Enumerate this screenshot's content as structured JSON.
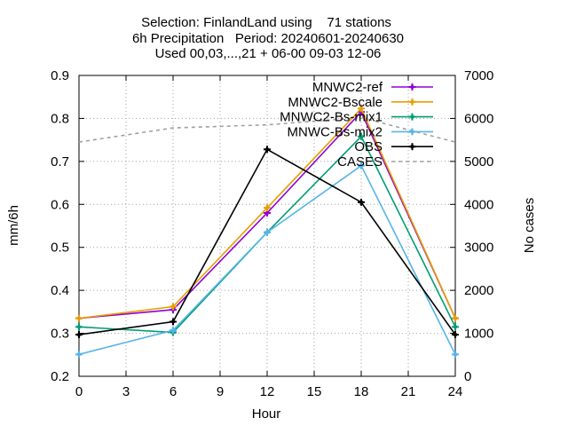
{
  "chart_data": {
    "type": "line",
    "title_lines": [
      "Selection: FinlandLand using    71 stations",
      "6h Precipitation   Period: 20240601-20240630",
      "Used 00,03,...,21 + 06-00 09-03 12-06"
    ],
    "xlabel": "Hour",
    "ylabel": "mm/6h",
    "y2label": "No cases",
    "xlim": [
      0,
      24
    ],
    "ylim": [
      0.2,
      0.9
    ],
    "y2lim": [
      0,
      7000
    ],
    "x_ticks": [
      0,
      3,
      6,
      9,
      12,
      15,
      18,
      21,
      24
    ],
    "y_ticks": [
      0.2,
      0.3,
      0.4,
      0.5,
      0.6,
      0.7,
      0.8,
      0.9
    ],
    "y_tick_labels": [
      "0.2",
      "0.3",
      "0.4",
      "0.5",
      "0.6",
      "0.7",
      "0.8",
      "0.9"
    ],
    "y2_ticks": [
      0,
      1000,
      2000,
      3000,
      4000,
      5000,
      6000,
      7000
    ],
    "grid": true,
    "legend_position": "top-right",
    "x": [
      0,
      6,
      12,
      18,
      24
    ],
    "series": [
      {
        "name": "MNWC2-ref",
        "color": "#9400d3",
        "marker": "plus",
        "axis": "y1",
        "values": [
          0.335,
          0.355,
          0.58,
          0.815,
          0.335
        ]
      },
      {
        "name": "MNWC2-Bscale",
        "color": "#e69f00",
        "marker": "plus",
        "axis": "y1",
        "values": [
          0.335,
          0.362,
          0.592,
          0.823,
          0.335
        ]
      },
      {
        "name": "MNWC2-Bs-mix1",
        "color": "#009e73",
        "marker": "plus",
        "axis": "y1",
        "values": [
          0.315,
          0.302,
          0.535,
          0.758,
          0.315
        ]
      },
      {
        "name": "MNWC-Bs-mix2",
        "color": "#56b4e9",
        "marker": "plus",
        "axis": "y1",
        "values": [
          0.251,
          0.307,
          0.535,
          0.69,
          0.251
        ]
      },
      {
        "name": "OBS",
        "color": "#000000",
        "marker": "plus",
        "axis": "y1",
        "values": [
          0.297,
          0.327,
          0.728,
          0.605,
          0.297
        ]
      },
      {
        "name": "CASES",
        "color": "#a0a0a0",
        "marker": "none",
        "dashed": true,
        "axis": "y2",
        "values": [
          5450,
          5780,
          5850,
          6020,
          5450
        ]
      }
    ]
  }
}
